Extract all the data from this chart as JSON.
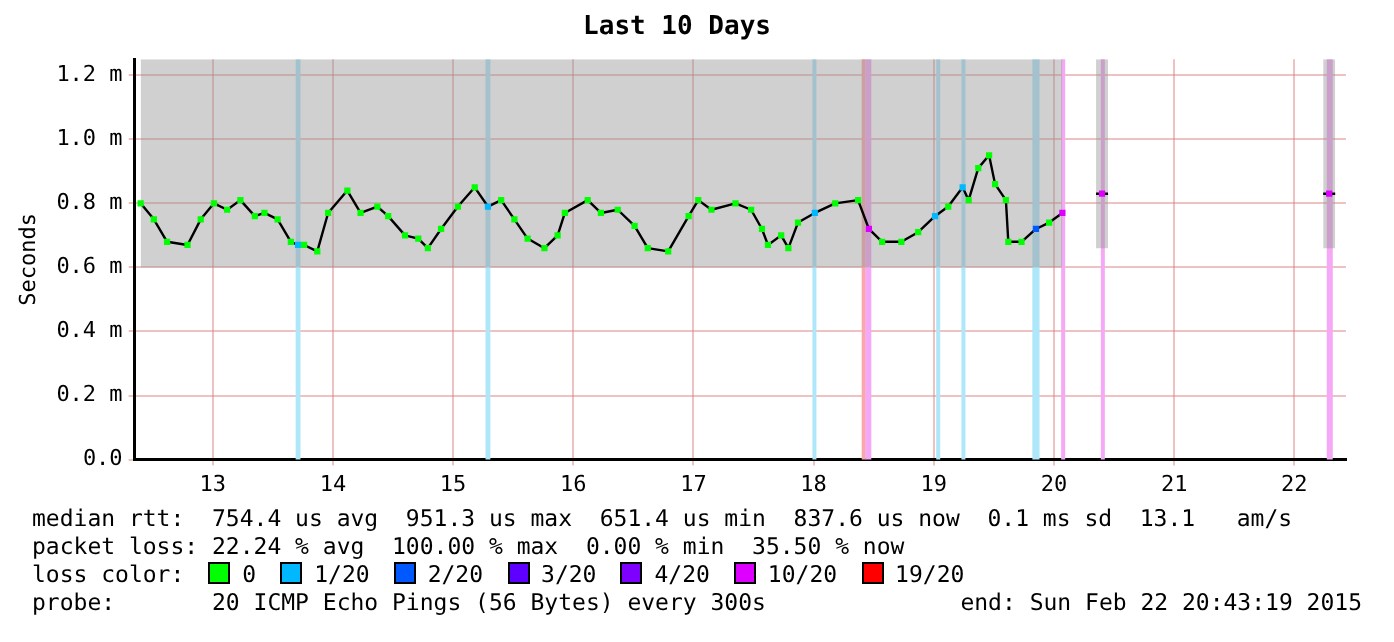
{
  "chart_data": {
    "type": "line",
    "title": "Last 10 Days",
    "ylabel": "Seconds",
    "xlim": [
      12.35,
      22.43
    ],
    "xticks": [
      13,
      14,
      15,
      16,
      17,
      18,
      19,
      20,
      21,
      22
    ],
    "ylim": [
      0,
      1.25
    ],
    "yticks": [
      {
        "value": 0,
        "label": "0.0"
      },
      {
        "value": 0.2,
        "label": "0.2 m"
      },
      {
        "value": 0.4,
        "label": "0.4 m"
      },
      {
        "value": 0.6,
        "label": "0.6 m"
      },
      {
        "value": 0.8,
        "label": "0.8 m"
      },
      {
        "value": 1.0,
        "label": "1.0 m"
      },
      {
        "value": 1.2,
        "label": "1.2 m"
      }
    ],
    "grid": true,
    "legend": "bottom",
    "legend_title": "loss color:",
    "marker": "square",
    "series": [
      {
        "color": "#000000",
        "marker": "none",
        "x": [
          12.4,
          12.51,
          12.62,
          12.79,
          12.9,
          13.01,
          13.12,
          13.23,
          13.35,
          13.43,
          13.54,
          13.65,
          13.71,
          13.76,
          13.87,
          13.96,
          14.12,
          14.23,
          14.37,
          14.46,
          14.6,
          14.71,
          14.79,
          14.9,
          15.04,
          15.18,
          15.29,
          15.4,
          15.51,
          15.62,
          15.76,
          15.87,
          15.93,
          16.12,
          16.23,
          16.37,
          16.51,
          16.62,
          16.79,
          16.96,
          17.04,
          17.15,
          17.35,
          17.48,
          17.57,
          17.62,
          17.73,
          17.79,
          17.87,
          18.01,
          18.18,
          18.37,
          18.46,
          18.57,
          18.73,
          18.87,
          19.01,
          19.12,
          19.24,
          19.29,
          19.37,
          19.46,
          19.51,
          19.6,
          19.62,
          19.73,
          19.85,
          19.96,
          20.07,
          20.25,
          20.35,
          20.45,
          21.3,
          22.24,
          22.34
        ],
        "values": [
          0.8,
          0.75,
          0.68,
          0.67,
          0.75,
          0.8,
          0.78,
          0.81,
          0.76,
          0.77,
          0.75,
          0.68,
          0.67,
          0.67,
          0.65,
          0.77,
          0.84,
          0.77,
          0.79,
          0.76,
          0.7,
          0.69,
          0.66,
          0.72,
          0.79,
          0.85,
          0.79,
          0.81,
          0.75,
          0.69,
          0.66,
          0.7,
          0.77,
          0.81,
          0.77,
          0.78,
          0.73,
          0.66,
          0.65,
          0.76,
          0.81,
          0.78,
          0.8,
          0.78,
          0.72,
          0.67,
          0.7,
          0.66,
          0.74,
          0.77,
          0.8,
          0.81,
          0.72,
          0.68,
          0.68,
          0.71,
          0.76,
          0.79,
          0.85,
          0.81,
          0.91,
          0.95,
          0.86,
          0.81,
          0.68,
          0.68,
          0.72,
          0.74,
          0.77,
          null,
          0.83,
          0.83,
          null,
          0.83,
          0.83
        ],
        "lower": [
          0.6,
          0.6,
          0.6,
          0.6,
          0.6,
          0.6,
          0.6,
          0.6,
          0.6,
          0.6,
          0.6,
          0.6,
          0.6,
          0.6,
          0.6,
          0.6,
          0.6,
          0.6,
          0.6,
          0.6,
          0.6,
          0.6,
          0.6,
          0.6,
          0.6,
          0.6,
          0.6,
          0.6,
          0.6,
          0.6,
          0.6,
          0.6,
          0.6,
          0.6,
          0.6,
          0.6,
          0.6,
          0.6,
          0.6,
          0.6,
          0.6,
          0.6,
          0.6,
          0.6,
          0.6,
          0.6,
          0.6,
          0.6,
          0.6,
          0.6,
          0.6,
          0.6,
          0.6,
          0.6,
          0.6,
          0.6,
          0.6,
          0.6,
          0.6,
          0.6,
          0.6,
          0.6,
          0.6,
          0.6,
          0.6,
          0.6,
          0.6,
          0.6,
          0.6,
          null,
          0.66,
          0.66,
          null,
          0.66,
          0.66
        ],
        "upper": [
          1.25,
          1.25,
          1.25,
          1.25,
          1.25,
          1.25,
          1.25,
          1.25,
          1.25,
          1.25,
          1.25,
          1.25,
          1.25,
          1.25,
          1.25,
          1.25,
          1.25,
          1.25,
          1.25,
          1.25,
          1.25,
          1.25,
          1.25,
          1.25,
          1.25,
          1.25,
          1.25,
          1.25,
          1.25,
          1.25,
          1.25,
          1.25,
          1.25,
          1.25,
          1.25,
          1.25,
          1.25,
          1.25,
          1.25,
          1.25,
          1.25,
          1.25,
          1.25,
          1.25,
          1.25,
          1.25,
          1.25,
          1.25,
          1.25,
          1.25,
          1.25,
          1.25,
          1.25,
          1.25,
          1.25,
          1.25,
          1.25,
          1.25,
          1.25,
          1.25,
          1.25,
          1.25,
          1.25,
          1.25,
          1.25,
          1.25,
          1.25,
          1.25,
          1.25,
          null,
          1.25,
          1.25,
          null,
          1.25,
          1.25
        ]
      },
      {
        "type": "scatter",
        "name": "0",
        "color": "#00ff00",
        "x": [
          12.4,
          12.51,
          12.62,
          12.79,
          12.9,
          13.01,
          13.12,
          13.23,
          13.35,
          13.43,
          13.54,
          13.65,
          13.76,
          13.87,
          13.96,
          14.12,
          14.23,
          14.37,
          14.46,
          14.6,
          14.71,
          14.79,
          14.9,
          15.04,
          15.18,
          15.4,
          15.51,
          15.62,
          15.76,
          15.87,
          15.93,
          16.12,
          16.23,
          16.37,
          16.51,
          16.62,
          16.79,
          16.96,
          17.04,
          17.15,
          17.35,
          17.48,
          17.57,
          17.62,
          17.73,
          17.79,
          17.87,
          18.18,
          18.37,
          18.57,
          18.73,
          18.87,
          19.12,
          19.29,
          19.37,
          19.46,
          19.51,
          19.6,
          19.62,
          19.73,
          19.96
        ],
        "values": [
          0.8,
          0.75,
          0.68,
          0.67,
          0.75,
          0.8,
          0.78,
          0.81,
          0.76,
          0.77,
          0.75,
          0.68,
          0.67,
          0.65,
          0.77,
          0.84,
          0.77,
          0.79,
          0.76,
          0.7,
          0.69,
          0.66,
          0.72,
          0.79,
          0.85,
          0.81,
          0.75,
          0.69,
          0.66,
          0.7,
          0.77,
          0.81,
          0.77,
          0.78,
          0.73,
          0.66,
          0.65,
          0.76,
          0.81,
          0.78,
          0.8,
          0.78,
          0.72,
          0.67,
          0.7,
          0.66,
          0.74,
          0.8,
          0.81,
          0.68,
          0.68,
          0.71,
          0.79,
          0.81,
          0.91,
          0.95,
          0.86,
          0.81,
          0.68,
          0.68,
          0.74
        ]
      },
      {
        "type": "scatter",
        "name": "1/20",
        "color": "#00b8ff",
        "x": [
          13.71,
          15.29,
          18.01,
          19.01,
          19.24
        ],
        "values": [
          0.67,
          0.79,
          0.77,
          0.76,
          0.85
        ]
      },
      {
        "type": "scatter",
        "name": "2/20",
        "color": "#0059ff",
        "x": [
          19.85
        ],
        "values": [
          0.72
        ]
      },
      {
        "type": "scatter",
        "name": "3/20",
        "color": "#5e00ff"
      },
      {
        "type": "scatter",
        "name": "4/20",
        "color": "#7e00ff"
      },
      {
        "type": "scatter",
        "name": "10/20",
        "color": "#dd00ff",
        "x": [
          18.46,
          20.07,
          20.4,
          22.29
        ],
        "values": [
          0.72,
          0.77,
          0.83,
          0.83
        ]
      },
      {
        "type": "scatter",
        "name": "19/20",
        "color": "#ff0000"
      }
    ],
    "bands": [
      {
        "axis": "x",
        "from": 13.69,
        "to": 13.73,
        "color": "#aee6fa"
      },
      {
        "axis": "x",
        "from": 15.27,
        "to": 15.31,
        "color": "#aee6fa"
      },
      {
        "axis": "x",
        "from": 17.99,
        "to": 18.02,
        "color": "#aee6fa"
      },
      {
        "axis": "x",
        "from": 18.4,
        "to": 18.43,
        "color": "#f8a8a8"
      },
      {
        "axis": "x",
        "from": 18.43,
        "to": 18.48,
        "color": "#f5a8f5"
      },
      {
        "axis": "x",
        "from": 19.02,
        "to": 19.05,
        "color": "#aee6fa"
      },
      {
        "axis": "x",
        "from": 19.23,
        "to": 19.26,
        "color": "#aee6fa"
      },
      {
        "axis": "x",
        "from": 19.82,
        "to": 19.88,
        "color": "#aee6fa"
      },
      {
        "axis": "x",
        "from": 20.06,
        "to": 20.09,
        "color": "#f5a8f5"
      },
      {
        "axis": "x",
        "from": 20.39,
        "to": 20.42,
        "color": "#f5a8f5"
      },
      {
        "axis": "x",
        "from": 22.27,
        "to": 22.32,
        "color": "#f5a8f5"
      }
    ],
    "annotations": [
      "median rtt:  754.4 us avg  951.3 us max  651.4 us min  837.6 us now  0.1 ms sd  13.1   am/s",
      "packet loss: 22.24 % avg  100.00 % max  0.00 % min  35.50 % now",
      "probe:       20 ICMP Echo Pings (56 Bytes) every 300s",
      "end: Sun Feb 22 20:43:19 2015"
    ]
  }
}
